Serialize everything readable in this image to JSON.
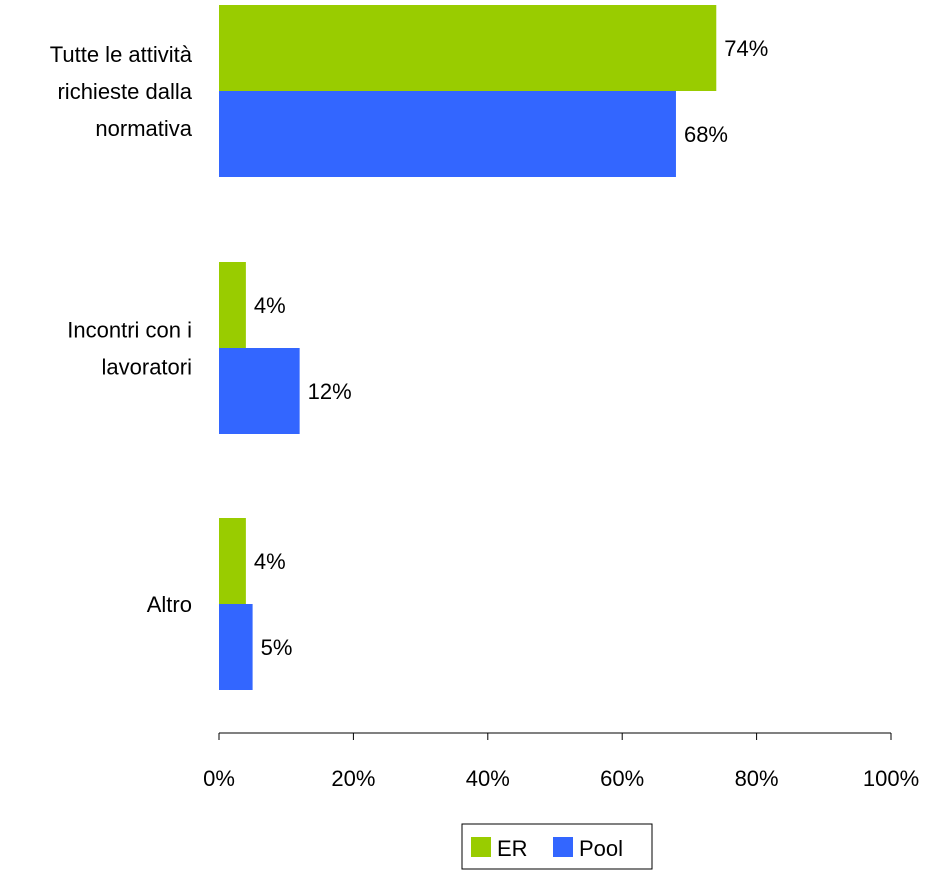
{
  "chart_data": {
    "type": "bar",
    "orientation": "horizontal",
    "categories": [
      [
        "Tutte le attività",
        "richieste dalla",
        "normativa"
      ],
      [
        "Incontri con i",
        "lavoratori"
      ],
      [
        "Altro"
      ]
    ],
    "series": [
      {
        "name": "ER",
        "color": "#99CC00",
        "values": [
          74,
          4,
          4
        ],
        "labels": [
          "74%",
          "4%",
          "4%"
        ]
      },
      {
        "name": "Pool",
        "color": "#3366FF",
        "values": [
          68,
          12,
          5
        ],
        "labels": [
          "68%",
          "12%",
          "5%"
        ]
      }
    ],
    "xlim": [
      0,
      100
    ],
    "xticks": [
      0,
      20,
      40,
      60,
      80,
      100
    ],
    "xtick_labels": [
      "0%",
      "20%",
      "40%",
      "60%",
      "80%",
      "100%"
    ],
    "grid": false,
    "legend_position": "bottom"
  }
}
